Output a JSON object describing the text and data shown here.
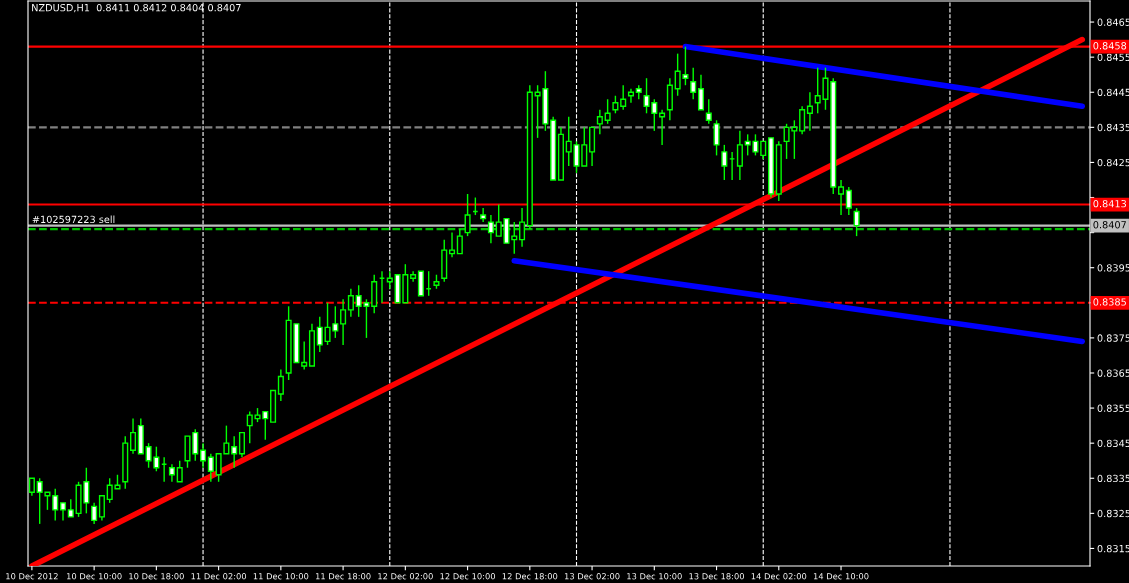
{
  "chart_data": {
    "type": "candlestick",
    "title": "NZDUSD,H1  0.8411 0.8412 0.8404 0.8407",
    "color": "#00ff00",
    "x": [
      "2012-12-10T02:00",
      "2012-12-10T03:00",
      "2012-12-10T04:00",
      "2012-12-10T05:00",
      "2012-12-10T06:00",
      "2012-12-10T07:00",
      "2012-12-10T08:00",
      "2012-12-10T09:00",
      "2012-12-10T10:00",
      "2012-12-10T11:00",
      "2012-12-10T12:00",
      "2012-12-10T13:00",
      "2012-12-10T14:00",
      "2012-12-10T15:00",
      "2012-12-10T16:00",
      "2012-12-10T17:00",
      "2012-12-10T18:00",
      "2012-12-10T19:00",
      "2012-12-10T20:00",
      "2012-12-10T21:00",
      "2012-12-10T22:00",
      "2012-12-10T23:00",
      "2012-12-11T00:00",
      "2012-12-11T01:00",
      "2012-12-11T02:00",
      "2012-12-11T03:00",
      "2012-12-11T04:00",
      "2012-12-11T05:00",
      "2012-12-11T06:00",
      "2012-12-11T07:00",
      "2012-12-11T08:00",
      "2012-12-11T09:00",
      "2012-12-11T10:00",
      "2012-12-11T11:00",
      "2012-12-11T12:00",
      "2012-12-11T13:00",
      "2012-12-11T14:00",
      "2012-12-11T15:00",
      "2012-12-11T16:00",
      "2012-12-11T17:00",
      "2012-12-11T18:00",
      "2012-12-11T19:00",
      "2012-12-11T20:00",
      "2012-12-11T21:00",
      "2012-12-11T22:00",
      "2012-12-11T23:00",
      "2012-12-12T00:00",
      "2012-12-12T01:00",
      "2012-12-12T02:00",
      "2012-12-12T03:00",
      "2012-12-12T04:00",
      "2012-12-12T05:00",
      "2012-12-12T06:00",
      "2012-12-12T07:00",
      "2012-12-12T08:00",
      "2012-12-12T09:00",
      "2012-12-12T10:00",
      "2012-12-12T11:00",
      "2012-12-12T12:00",
      "2012-12-12T13:00",
      "2012-12-12T14:00",
      "2012-12-12T15:00",
      "2012-12-12T16:00",
      "2012-12-12T17:00",
      "2012-12-12T18:00",
      "2012-12-12T19:00",
      "2012-12-12T20:00",
      "2012-12-12T21:00",
      "2012-12-12T22:00",
      "2012-12-12T23:00",
      "2012-12-13T00:00",
      "2012-12-13T01:00",
      "2012-12-13T02:00",
      "2012-12-13T03:00",
      "2012-12-13T04:00",
      "2012-12-13T05:00",
      "2012-12-13T06:00",
      "2012-12-13T07:00",
      "2012-12-13T08:00",
      "2012-12-13T09:00",
      "2012-12-13T10:00",
      "2012-12-13T11:00",
      "2012-12-13T12:00",
      "2012-12-13T13:00",
      "2012-12-13T14:00",
      "2012-12-13T15:00",
      "2012-12-13T16:00",
      "2012-12-13T17:00",
      "2012-12-13T18:00",
      "2012-12-13T19:00",
      "2012-12-13T20:00",
      "2012-12-13T21:00",
      "2012-12-13T22:00",
      "2012-12-13T23:00",
      "2012-12-14T00:00",
      "2012-12-14T01:00",
      "2012-12-14T02:00",
      "2012-12-14T03:00",
      "2012-12-14T04:00",
      "2012-12-14T05:00",
      "2012-12-14T06:00",
      "2012-12-14T07:00",
      "2012-12-14T08:00",
      "2012-12-14T09:00",
      "2012-12-14T10:00",
      "2012-12-14T11:00",
      "2012-12-14T12:00"
    ],
    "ohlc": [
      [
        0.8331,
        0.8335,
        0.833,
        0.8335
      ],
      [
        0.8334,
        0.8335,
        0.8322,
        0.8331
      ],
      [
        0.833,
        0.8331,
        0.8326,
        0.8331
      ],
      [
        0.833,
        0.8332,
        0.8323,
        0.8326
      ],
      [
        0.8328,
        0.8328,
        0.8323,
        0.8326
      ],
      [
        0.8326,
        0.8329,
        0.8324,
        0.8324
      ],
      [
        0.8325,
        0.8334,
        0.8324,
        0.8333
      ],
      [
        0.8334,
        0.8338,
        0.8325,
        0.8328
      ],
      [
        0.8327,
        0.8328,
        0.8322,
        0.8323
      ],
      [
        0.8324,
        0.833,
        0.8323,
        0.833
      ],
      [
        0.8329,
        0.8335,
        0.8328,
        0.8333
      ],
      [
        0.8332,
        0.8336,
        0.8332,
        0.8333
      ],
      [
        0.8334,
        0.8347,
        0.8332,
        0.8345
      ],
      [
        0.8343,
        0.8352,
        0.8342,
        0.8348
      ],
      [
        0.835,
        0.8352,
        0.8342,
        0.8342
      ],
      [
        0.8344,
        0.8345,
        0.8338,
        0.834
      ],
      [
        0.8341,
        0.8344,
        0.8337,
        0.8338
      ],
      [
        0.8339,
        0.8341,
        0.8334,
        0.8339
      ],
      [
        0.8338,
        0.8339,
        0.8334,
        0.8336
      ],
      [
        0.8334,
        0.834,
        0.8334,
        0.8338
      ],
      [
        0.834,
        0.8347,
        0.8338,
        0.8347
      ],
      [
        0.8348,
        0.8349,
        0.834,
        0.8342
      ],
      [
        0.8343,
        0.8345,
        0.8338,
        0.834
      ],
      [
        0.8341,
        0.8342,
        0.8334,
        0.8337
      ],
      [
        0.8336,
        0.8342,
        0.8334,
        0.8342
      ],
      [
        0.8342,
        0.835,
        0.8342,
        0.8345
      ],
      [
        0.8344,
        0.8347,
        0.8338,
        0.8342
      ],
      [
        0.8342,
        0.8348,
        0.8341,
        0.8348
      ],
      [
        0.835,
        0.8354,
        0.8345,
        0.8353
      ],
      [
        0.8352,
        0.8355,
        0.8351,
        0.8353
      ],
      [
        0.8354,
        0.8354,
        0.8346,
        0.8352
      ],
      [
        0.8351,
        0.836,
        0.8351,
        0.836
      ],
      [
        0.8359,
        0.8366,
        0.8357,
        0.8364
      ],
      [
        0.8365,
        0.8384,
        0.8363,
        0.838
      ],
      [
        0.8379,
        0.8379,
        0.8368,
        0.8368
      ],
      [
        0.8367,
        0.8374,
        0.8366,
        0.8368
      ],
      [
        0.8367,
        0.8379,
        0.8367,
        0.8377
      ],
      [
        0.8378,
        0.8381,
        0.8371,
        0.8373
      ],
      [
        0.8374,
        0.8385,
        0.8373,
        0.8378
      ],
      [
        0.8379,
        0.8384,
        0.8375,
        0.8377
      ],
      [
        0.8379,
        0.8386,
        0.8373,
        0.8383
      ],
      [
        0.8383,
        0.8389,
        0.8381,
        0.8387
      ],
      [
        0.8387,
        0.839,
        0.8381,
        0.8384
      ],
      [
        0.8385,
        0.8386,
        0.8375,
        0.8384
      ],
      [
        0.8384,
        0.8393,
        0.8382,
        0.8391
      ],
      [
        0.8392,
        0.8394,
        0.8385,
        0.8392
      ],
      [
        0.8391,
        0.8394,
        0.8389,
        0.8392
      ],
      [
        0.8393,
        0.8393,
        0.8385,
        0.8385
      ],
      [
        0.8385,
        0.8396,
        0.8385,
        0.8393
      ],
      [
        0.8392,
        0.8394,
        0.8391,
        0.8393
      ],
      [
        0.8394,
        0.8394,
        0.8387,
        0.8387
      ],
      [
        0.8389,
        0.8394,
        0.8387,
        0.8389
      ],
      [
        0.839,
        0.8393,
        0.8389,
        0.8391
      ],
      [
        0.8392,
        0.8403,
        0.8391,
        0.84
      ],
      [
        0.8399,
        0.8405,
        0.8398,
        0.84
      ],
      [
        0.8399,
        0.8406,
        0.8399,
        0.8404
      ],
      [
        0.8405,
        0.8416,
        0.8404,
        0.841
      ],
      [
        0.8411,
        0.8415,
        0.841,
        0.8411
      ],
      [
        0.841,
        0.8412,
        0.8408,
        0.8409
      ],
      [
        0.8408,
        0.841,
        0.8402,
        0.8405
      ],
      [
        0.8404,
        0.8413,
        0.8404,
        0.8408
      ],
      [
        0.8409,
        0.8409,
        0.8402,
        0.8402
      ],
      [
        0.8403,
        0.8408,
        0.8399,
        0.8404
      ],
      [
        0.8403,
        0.8412,
        0.8401,
        0.8408
      ],
      [
        0.8407,
        0.8447,
        0.8406,
        0.8445
      ],
      [
        0.8444,
        0.8447,
        0.8432,
        0.8445
      ],
      [
        0.8446,
        0.8451,
        0.8434,
        0.8436
      ],
      [
        0.8437,
        0.8438,
        0.842,
        0.842
      ],
      [
        0.842,
        0.8435,
        0.842,
        0.8433
      ],
      [
        0.8428,
        0.8438,
        0.8424,
        0.8431
      ],
      [
        0.843,
        0.8431,
        0.8422,
        0.8424
      ],
      [
        0.8424,
        0.8435,
        0.8424,
        0.843
      ],
      [
        0.8428,
        0.8435,
        0.8424,
        0.8435
      ],
      [
        0.8436,
        0.844,
        0.8433,
        0.8438
      ],
      [
        0.8437,
        0.8443,
        0.8436,
        0.8439
      ],
      [
        0.844,
        0.8444,
        0.8439,
        0.8442
      ],
      [
        0.8441,
        0.8447,
        0.844,
        0.8443
      ],
      [
        0.8444,
        0.8446,
        0.8442,
        0.8445
      ],
      [
        0.8446,
        0.8447,
        0.8443,
        0.8445
      ],
      [
        0.8444,
        0.8449,
        0.8439,
        0.8441
      ],
      [
        0.8442,
        0.8443,
        0.8434,
        0.8439
      ],
      [
        0.8438,
        0.844,
        0.843,
        0.8439
      ],
      [
        0.844,
        0.8449,
        0.8437,
        0.8447
      ],
      [
        0.8446,
        0.8456,
        0.8444,
        0.8451
      ],
      [
        0.845,
        0.8458,
        0.8447,
        0.8449
      ],
      [
        0.8448,
        0.8452,
        0.8443,
        0.8445
      ],
      [
        0.8446,
        0.845,
        0.844,
        0.844
      ],
      [
        0.8439,
        0.8443,
        0.8436,
        0.8437
      ],
      [
        0.8436,
        0.8437,
        0.8427,
        0.843
      ],
      [
        0.8428,
        0.843,
        0.842,
        0.8424
      ],
      [
        0.8426,
        0.8428,
        0.842,
        0.8426
      ],
      [
        0.8424,
        0.8434,
        0.842,
        0.843
      ],
      [
        0.8431,
        0.8433,
        0.8427,
        0.843
      ],
      [
        0.8431,
        0.8433,
        0.8427,
        0.8428
      ],
      [
        0.8427,
        0.8431,
        0.8426,
        0.8431
      ],
      [
        0.8432,
        0.8432,
        0.8415,
        0.8416
      ],
      [
        0.8416,
        0.8431,
        0.8414,
        0.843
      ],
      [
        0.8431,
        0.8436,
        0.8426,
        0.8435
      ],
      [
        0.8434,
        0.8437,
        0.8426,
        0.8435
      ],
      [
        0.8434,
        0.8441,
        0.8433,
        0.844
      ],
      [
        0.8439,
        0.8445,
        0.8434,
        0.8441
      ],
      [
        0.8442,
        0.8452,
        0.8439,
        0.8444
      ],
      [
        0.8443,
        0.8452,
        0.844,
        0.8449
      ],
      [
        0.8448,
        0.8449,
        0.8416,
        0.8418
      ],
      [
        0.8416,
        0.842,
        0.841,
        0.8418
      ],
      [
        0.8417,
        0.8418,
        0.841,
        0.8412
      ],
      [
        0.8411,
        0.8412,
        0.8404,
        0.8407
      ]
    ],
    "series": [
      {
        "type": "line",
        "color": "#ff0000",
        "x": [
          "2012-12-10T02:00",
          "2012-12-15T17:00"
        ],
        "values": [
          0.831,
          0.846
        ]
      },
      {
        "type": "line",
        "color": "#0000ff",
        "x": [
          "2012-12-13T14:00",
          "2012-12-15T17:00"
        ],
        "values": [
          0.8458,
          0.8441
        ]
      },
      {
        "type": "line",
        "color": "#0000ff",
        "x": [
          "2012-12-12T16:00",
          "2012-12-15T17:00"
        ],
        "values": [
          0.8397,
          0.8374
        ]
      }
    ],
    "ref_lines": [
      {
        "axis": "y",
        "value": 0.8458,
        "label": "0.8458",
        "color": "#ff0000",
        "line_style": "solid"
      },
      {
        "axis": "y",
        "value": 0.8413,
        "label": "0.8413",
        "color": "#ff0000",
        "line_style": "solid"
      },
      {
        "axis": "y",
        "value": 0.8385,
        "label": "0.8385",
        "color": "#ff0000",
        "line_style": "dashed"
      },
      {
        "axis": "y",
        "value": 0.8407,
        "label": "0.8407",
        "color": "#c0c0c0",
        "line_style": "solid"
      },
      {
        "axis": "y",
        "value": 0.8406,
        "color": "#00c000",
        "line_style": "dashed"
      },
      {
        "axis": "y",
        "value": 0.8435,
        "color": "#808080",
        "line_style": "dashed"
      },
      {
        "axis": "x",
        "value": "2012-12-11T00:00",
        "color": "#ffffff",
        "line_style": "dashed"
      },
      {
        "axis": "x",
        "value": "2012-12-12T00:00",
        "color": "#ffffff",
        "line_style": "dashed"
      },
      {
        "axis": "x",
        "value": "2012-12-13T00:00",
        "color": "#ffffff",
        "line_style": "dashed"
      },
      {
        "axis": "x",
        "value": "2012-12-14T00:00",
        "color": "#ffffff",
        "line_style": "dashed"
      },
      {
        "axis": "x",
        "value": "2012-12-15T00:00",
        "color": "#ffffff",
        "line_style": "dashed"
      }
    ],
    "annotations": [
      {
        "text": "#102597223 sell",
        "x": "2012-12-10T02:00",
        "y": 0.8406
      }
    ],
    "xlim": [
      "2012-12-10T01:30",
      "2012-12-15T18:00"
    ],
    "xticks": [
      {
        "value": "2012-12-10T02:00",
        "label": "10 Dec 2012"
      },
      {
        "value": "2012-12-10T10:00",
        "label": "10 Dec 10:00"
      },
      {
        "value": "2012-12-10T18:00",
        "label": "10 Dec 18:00"
      },
      {
        "value": "2012-12-11T02:00",
        "label": "11 Dec 02:00"
      },
      {
        "value": "2012-12-11T10:00",
        "label": "11 Dec 10:00"
      },
      {
        "value": "2012-12-11T18:00",
        "label": "11 Dec 18:00"
      },
      {
        "value": "2012-12-12T02:00",
        "label": "12 Dec 02:00"
      },
      {
        "value": "2012-12-12T10:00",
        "label": "12 Dec 10:00"
      },
      {
        "value": "2012-12-12T18:00",
        "label": "12 Dec 18:00"
      },
      {
        "value": "2012-12-13T02:00",
        "label": "13 Dec 02:00"
      },
      {
        "value": "2012-12-13T10:00",
        "label": "13 Dec 10:00"
      },
      {
        "value": "2012-12-13T18:00",
        "label": "13 Dec 18:00"
      },
      {
        "value": "2012-12-14T02:00",
        "label": "14 Dec 02:00"
      },
      {
        "value": "2012-12-14T10:00",
        "label": "14 Dec 10:00"
      }
    ],
    "ylim": [
      0.831,
      0.8471
    ],
    "yticks": [
      {
        "value": 0.8315,
        "label": "0.8315"
      },
      {
        "value": 0.8325,
        "label": "0.8325"
      },
      {
        "value": 0.8335,
        "label": "0.8335"
      },
      {
        "value": 0.8345,
        "label": "0.8345"
      },
      {
        "value": 0.8355,
        "label": "0.8355"
      },
      {
        "value": 0.8365,
        "label": "0.8365"
      },
      {
        "value": 0.8375,
        "label": "0.8375"
      },
      {
        "value": 0.8385,
        "label": null
      },
      {
        "value": 0.8395,
        "label": "0.8395"
      },
      {
        "value": 0.8405,
        "label": null
      },
      {
        "value": 0.8415,
        "label": null
      },
      {
        "value": 0.8425,
        "label": "0.8425"
      },
      {
        "value": 0.8435,
        "label": "0.8435"
      },
      {
        "value": 0.8445,
        "label": "0.8445"
      },
      {
        "value": 0.8455,
        "label": "0.8455"
      },
      {
        "value": 0.8465,
        "label": "0.8465"
      }
    ]
  }
}
